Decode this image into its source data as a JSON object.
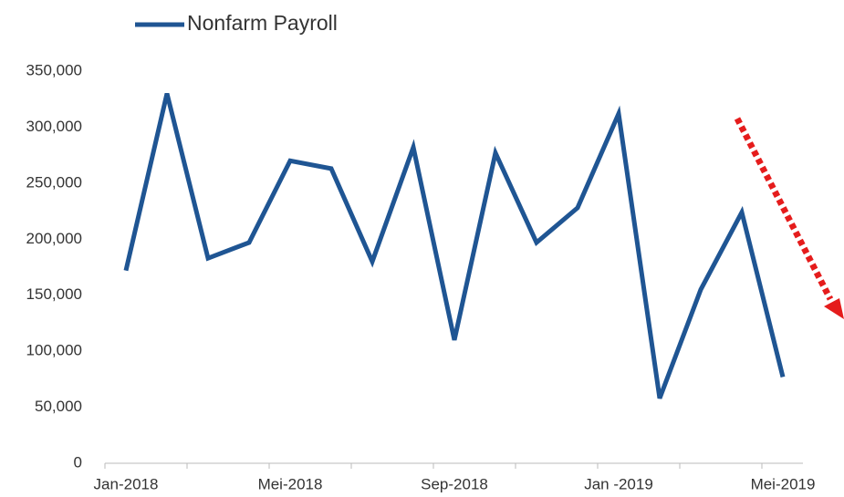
{
  "chart_data": {
    "type": "line",
    "categories": [
      "Jan-2018",
      null,
      null,
      null,
      "Mei-2018",
      null,
      null,
      null,
      "Sep-2018",
      null,
      null,
      null,
      "Jan -2019",
      null,
      null,
      null,
      "Mei-2019"
    ],
    "series": [
      {
        "name": "Nonfarm Payroll",
        "color": "#1f5593",
        "values": [
          172000,
          330000,
          183000,
          197000,
          270000,
          263000,
          180000,
          282000,
          110000,
          277000,
          197000,
          228000,
          312000,
          58000,
          155000,
          224000,
          77000
        ]
      }
    ],
    "ylim": [
      0,
      350000
    ],
    "yticks": [
      0,
      {
        "value": 50000,
        "label": "50,000"
      },
      {
        "value": 100000,
        "label": "100,000"
      },
      {
        "value": 150000,
        "label": "150,000"
      },
      {
        "value": 200000,
        "label": "200,000"
      },
      {
        "value": 250000,
        "label": "250,000"
      },
      {
        "value": 300000,
        "label": "300,000"
      },
      {
        "value": 350000,
        "label": "350,000"
      }
    ],
    "legend": "top-left"
  }
}
